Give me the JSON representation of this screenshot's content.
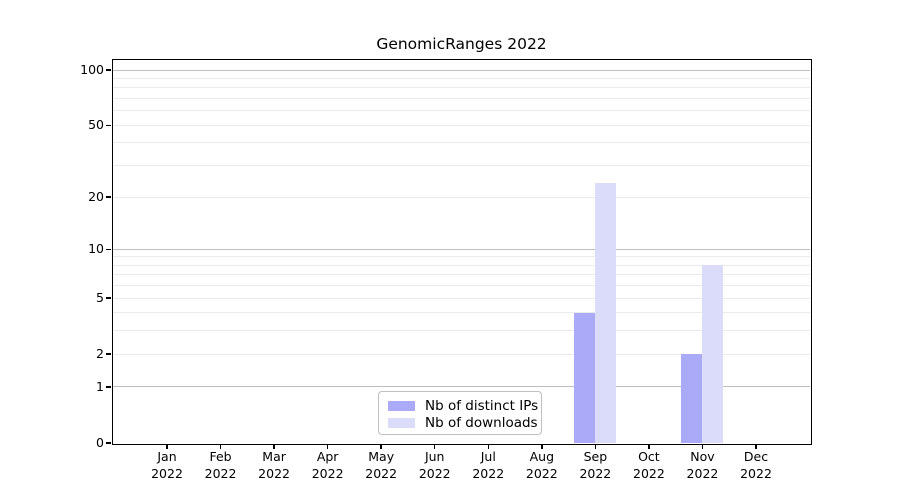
{
  "title": "GenomicRanges 2022",
  "chart_data": {
    "type": "bar",
    "title": "GenomicRanges 2022",
    "categories": [
      "Jan 2022",
      "Feb 2022",
      "Mar 2022",
      "Apr 2022",
      "May 2022",
      "Jun 2022",
      "Jul 2022",
      "Aug 2022",
      "Sep 2022",
      "Oct 2022",
      "Nov 2022",
      "Dec 2022"
    ],
    "series": [
      {
        "name": "Nb of distinct IPs",
        "color": "#aaaaf9",
        "values": [
          0,
          0,
          0,
          0,
          0,
          0,
          0,
          0,
          4,
          0,
          2,
          0
        ]
      },
      {
        "name": "Nb of downloads",
        "color": "#dbdbfa",
        "values": [
          0,
          0,
          0,
          0,
          0,
          0,
          0,
          0,
          24,
          0,
          8,
          0
        ]
      }
    ],
    "xlabel": "",
    "ylabel": "",
    "yscale": "log1p",
    "ylim": [
      0,
      113.5
    ],
    "yticks": [
      0,
      1,
      2,
      5,
      10,
      20,
      50,
      100
    ],
    "yticklabels": [
      "0",
      "1",
      "2",
      "5",
      "10",
      "20",
      "50",
      "100"
    ],
    "grid": true,
    "grid_decades": [
      1,
      10,
      100
    ],
    "grid_minor": [
      2,
      3,
      4,
      5,
      6,
      7,
      8,
      9,
      20,
      30,
      40,
      50,
      60,
      70,
      80,
      90
    ],
    "legend_position": "lower center"
  },
  "legend": {
    "items": [
      "Nb of distinct IPs",
      "Nb of downloads"
    ]
  },
  "colors": {
    "background": "#ffffff",
    "axis": "#000000",
    "text": "#000000",
    "grid_decade": "#bdbdbd",
    "grid_minor": "#ebebeb",
    "bar_distinct_ips": "#aaaaf9",
    "bar_downloads": "#dbdbfa",
    "legend_border": "#bfbfbf"
  }
}
